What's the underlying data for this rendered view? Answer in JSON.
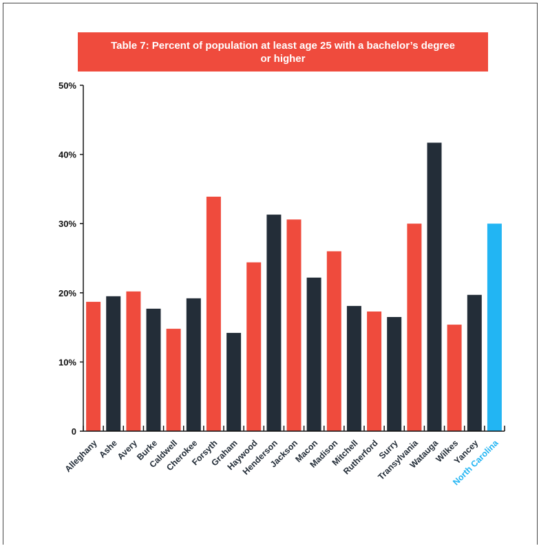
{
  "colors": {
    "banner": "#ef4b3d",
    "red": "#ef4b3d",
    "dark": "#232d38",
    "blue": "#22b5f3",
    "label_dark": "#232d38",
    "axis": "#111111"
  },
  "chart_data": {
    "type": "bar",
    "title": "Table 7: Percent of population at least age 25 with a bachelor’s degree or higher",
    "xlabel": "",
    "ylabel": "",
    "ylim": [
      0,
      50
    ],
    "y_ticks": [
      {
        "value": 0,
        "label": "0"
      },
      {
        "value": 10,
        "label": "10%"
      },
      {
        "value": 20,
        "label": "20%"
      },
      {
        "value": 30,
        "label": "30%"
      },
      {
        "value": 40,
        "label": "40%"
      },
      {
        "value": 50,
        "label": "50%"
      }
    ],
    "grid": false,
    "legend": "none",
    "categories": [
      "Alleghany",
      "Ashe",
      "Avery",
      "Burke",
      "Caldwell",
      "Cherokee",
      "Forsyth",
      "Graham",
      "Haywood",
      "Henderson",
      "Jackson",
      "Macon",
      "Madison",
      "Mitchell",
      "Rutherford",
      "Surry",
      "Transylvania",
      "Watauga",
      "Wilkes",
      "Yancey",
      "North Carolina"
    ],
    "values": [
      18.7,
      19.5,
      20.2,
      17.7,
      14.8,
      19.2,
      33.9,
      14.2,
      24.4,
      31.3,
      30.6,
      22.2,
      26.0,
      18.1,
      17.3,
      16.5,
      30.0,
      41.7,
      15.4,
      19.7,
      30.0
    ],
    "bar_colors": [
      "red",
      "dark",
      "red",
      "dark",
      "red",
      "dark",
      "red",
      "dark",
      "red",
      "dark",
      "red",
      "dark",
      "red",
      "dark",
      "red",
      "dark",
      "red",
      "dark",
      "red",
      "dark",
      "blue"
    ]
  }
}
